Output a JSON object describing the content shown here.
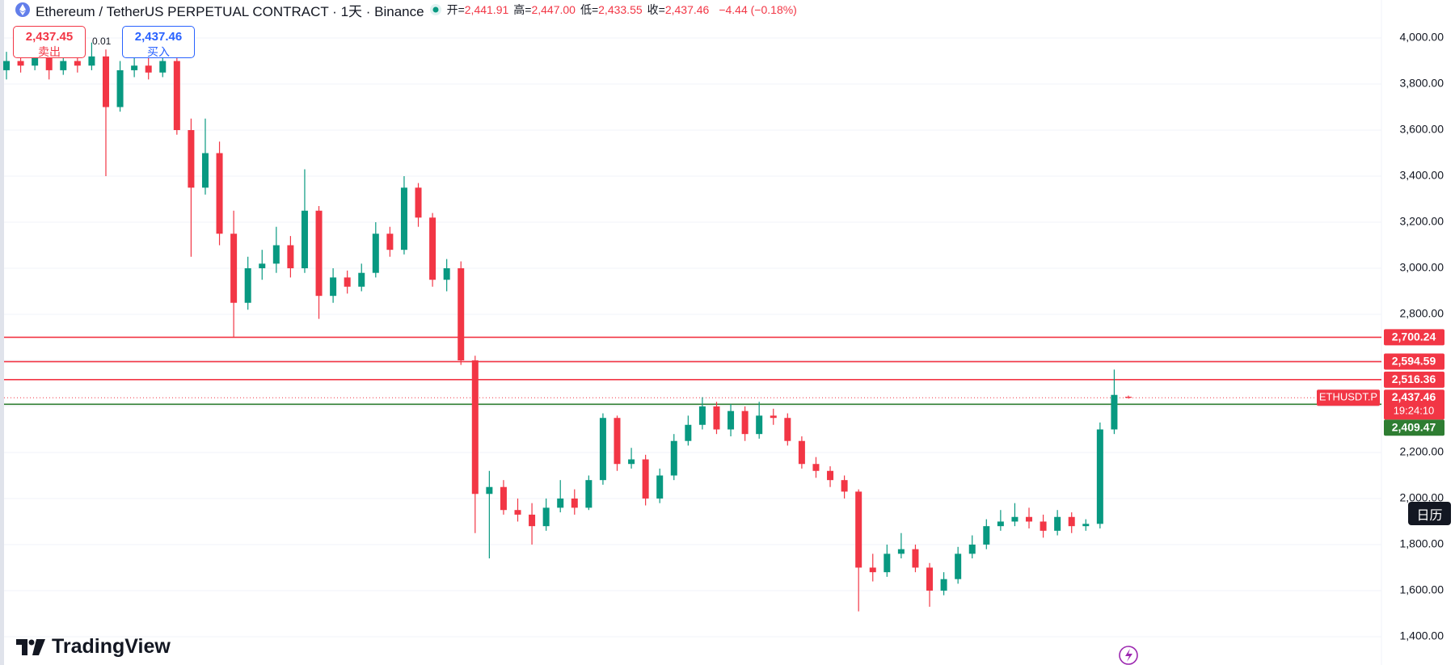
{
  "header": {
    "symbol": "Ethereum / TetherUS PERPETUAL CONTRACT · 1天 · Binance",
    "stats": [
      {
        "label": "开=",
        "value": "2,441.91"
      },
      {
        "label": "高=",
        "value": "2,447.00"
      },
      {
        "label": "低=",
        "value": "2,433.55"
      },
      {
        "label": "收=",
        "value": "2,437.46"
      }
    ],
    "change": "−4.44 (−0.18%)"
  },
  "trade": {
    "sell": {
      "price": "2,437.45",
      "label": "卖出"
    },
    "quantity": "0.01",
    "buy": {
      "price": "2,437.46",
      "label": "买入"
    }
  },
  "calendar": "日历",
  "brand": "TradingView",
  "chart_data": {
    "type": "candlestick",
    "up_color": "#089981",
    "down_color": "#f23645",
    "open": [
      3860,
      3900,
      3880,
      3920,
      3860,
      3900,
      3880,
      3920,
      3700,
      3860,
      3880,
      3850,
      3900,
      3600,
      3350,
      3500,
      3150,
      2850,
      3000,
      3020,
      3100,
      3000,
      3250,
      2880,
      2960,
      2920,
      2980,
      3150,
      3080,
      3350,
      3220,
      2950,
      3000,
      2600,
      2020,
      2050,
      1950,
      1930,
      1880,
      1960,
      2000,
      1960,
      2080,
      2350,
      2150,
      2170,
      2000,
      2100,
      2250,
      2320,
      2400,
      2300,
      2380,
      2280,
      2360,
      2350,
      2250,
      2150,
      2120,
      2080,
      2030,
      1700,
      1680,
      1760,
      1780,
      1700,
      1600,
      1650,
      1760,
      1800,
      1880,
      1900,
      1920,
      1900,
      1860,
      1920,
      1880,
      1890,
      2300,
      2441.91
    ],
    "high": [
      3940,
      3930,
      3960,
      3950,
      3930,
      3940,
      3980,
      3950,
      3900,
      3930,
      3920,
      3950,
      3920,
      3650,
      3650,
      3550,
      3250,
      3050,
      3080,
      3180,
      3140,
      3430,
      3270,
      3000,
      2990,
      3020,
      3200,
      3180,
      3400,
      3370,
      3240,
      3040,
      3030,
      2620,
      2120,
      2080,
      2000,
      1980,
      2000,
      2080,
      2040,
      2100,
      2370,
      2360,
      2220,
      2190,
      2130,
      2280,
      2360,
      2440,
      2420,
      2410,
      2400,
      2420,
      2390,
      2370,
      2270,
      2180,
      2140,
      2100,
      2040,
      1760,
      1800,
      1850,
      1800,
      1720,
      1680,
      1790,
      1840,
      1910,
      1950,
      1980,
      1960,
      1930,
      1950,
      1940,
      1910,
      2330,
      2560,
      2447.0
    ],
    "low": [
      3820,
      3850,
      3860,
      3820,
      3840,
      3850,
      3860,
      3400,
      3680,
      3830,
      3820,
      3830,
      3580,
      3050,
      3320,
      3100,
      2700,
      2820,
      2950,
      2980,
      2960,
      2980,
      2780,
      2850,
      2890,
      2900,
      2960,
      3050,
      3060,
      3180,
      2920,
      2900,
      2580,
      1850,
      1740,
      1930,
      1900,
      1800,
      1860,
      1940,
      1930,
      1950,
      2060,
      2120,
      2130,
      1970,
      1980,
      2080,
      2230,
      2300,
      2280,
      2270,
      2250,
      2260,
      2320,
      2230,
      2130,
      2090,
      2050,
      2000,
      1510,
      1640,
      1660,
      1740,
      1680,
      1530,
      1580,
      1630,
      1740,
      1780,
      1860,
      1880,
      1870,
      1830,
      1840,
      1850,
      1860,
      1870,
      2280,
      2433.55
    ],
    "close": [
      3900,
      3880,
      3920,
      3860,
      3900,
      3880,
      3920,
      3700,
      3860,
      3880,
      3850,
      3900,
      3600,
      3350,
      3500,
      3150,
      2850,
      3000,
      3020,
      3100,
      3000,
      3250,
      2880,
      2960,
      2920,
      2980,
      3150,
      3080,
      3350,
      3220,
      2950,
      3000,
      2600,
      2020,
      2050,
      1950,
      1930,
      1880,
      1960,
      2000,
      1960,
      2080,
      2350,
      2150,
      2170,
      2000,
      2100,
      2250,
      2320,
      2400,
      2300,
      2380,
      2280,
      2360,
      2350,
      2250,
      2150,
      2120,
      2080,
      2030,
      1700,
      1680,
      1760,
      1780,
      1700,
      1600,
      1650,
      1760,
      1800,
      1880,
      1900,
      1920,
      1900,
      1860,
      1920,
      1880,
      1890,
      2300,
      2450,
      2437.46
    ],
    "ylim": [
      1277,
      4165
    ],
    "yticks": [
      {
        "value": 1400,
        "label": "1,400.00"
      },
      {
        "value": 1600,
        "label": "1,600.00"
      },
      {
        "value": 1800,
        "label": "1,800.00"
      },
      {
        "value": 2000,
        "label": "2,000.00"
      },
      {
        "value": 2200,
        "label": "2,200.00"
      },
      {
        "value": 2400,
        "label": "2,400.00"
      },
      {
        "value": 2600,
        "label": "2,600.00"
      },
      {
        "value": 2800,
        "label": "2,800.00"
      },
      {
        "value": 3000,
        "label": "3,000.00"
      },
      {
        "value": 3200,
        "label": "3,200.00"
      },
      {
        "value": 3400,
        "label": "3,400.00"
      },
      {
        "value": 3600,
        "label": "3,600.00"
      },
      {
        "value": 3800,
        "label": "3,800.00"
      },
      {
        "value": 4000,
        "label": "4,000.00"
      }
    ],
    "grid": true,
    "price_lines": [
      {
        "value": 2700.24,
        "label": "2,700.24",
        "color": "#f23645"
      },
      {
        "value": 2594.59,
        "label": "2,594.59",
        "color": "#f23645"
      },
      {
        "value": 2516.36,
        "label": "2,516.36",
        "color": "#f23645"
      },
      {
        "value": 2409.47,
        "label": "2,409.47",
        "color": "#2e7d32"
      }
    ],
    "last_price": {
      "value": 2437.46,
      "label": "2,437.46",
      "symbol": "ETHUSDT.P",
      "countdown": "19:24:10",
      "color": "#f23645"
    }
  }
}
